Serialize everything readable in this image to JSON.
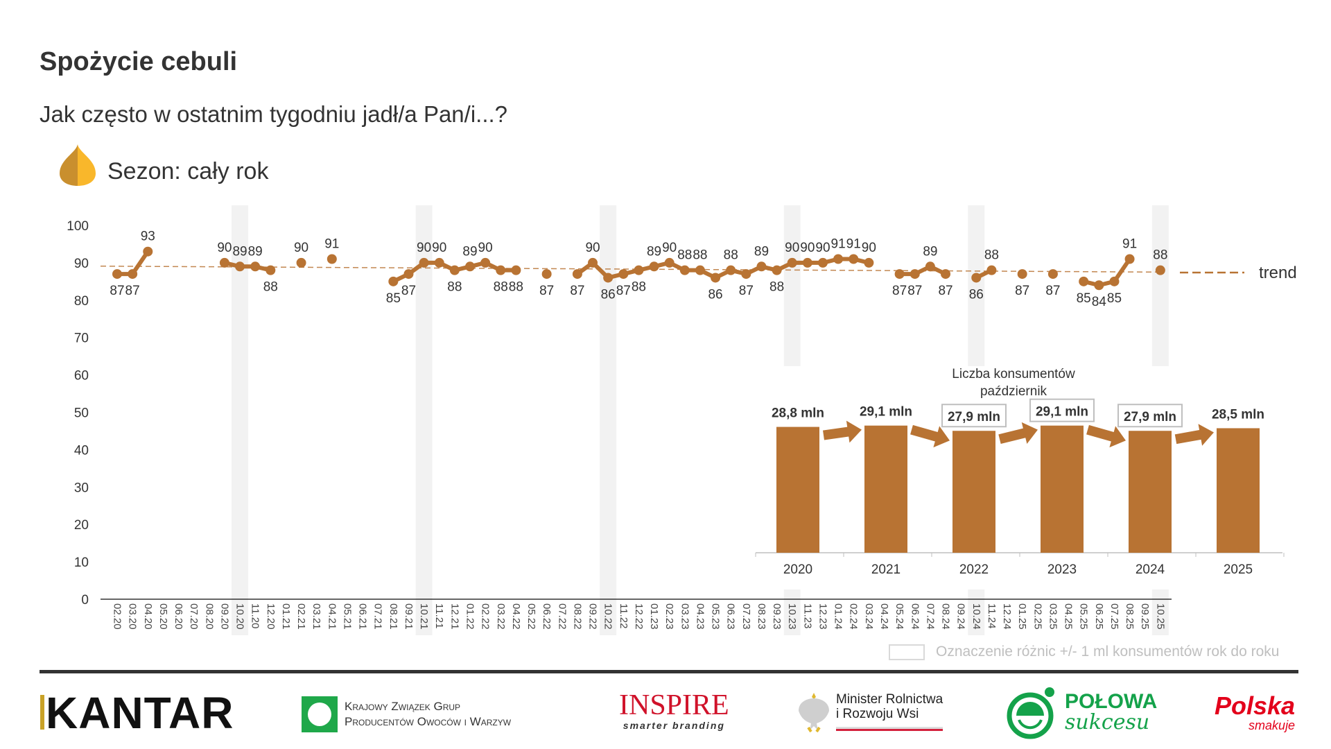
{
  "header": {
    "title": "Spożycie cebuli",
    "subtitle": "Jak często w ostatnim tygodniu jadł/a Pan/i...?",
    "season": "Sezon: cały rok"
  },
  "colors": {
    "series": "#b87333",
    "band": "#f2f2f2",
    "onion_dark": "#c98f2e",
    "onion_light": "#f9b72b"
  },
  "chart_data": [
    {
      "type": "line",
      "title": "Spożycie cebuli",
      "ylim": [
        0,
        100
      ],
      "yticks": [
        0,
        10,
        20,
        30,
        40,
        50,
        60,
        70,
        80,
        90,
        100
      ],
      "x": [
        "02.20",
        "03.20",
        "04.20",
        "05.20",
        "06.20",
        "07.20",
        "08.20",
        "09.20",
        "10.20",
        "11.20",
        "12.20",
        "01.21",
        "02.21",
        "03.21",
        "04.21",
        "05.21",
        "06.21",
        "07.21",
        "08.21",
        "09.21",
        "10.21",
        "11.21",
        "12.21",
        "01.22",
        "02.22",
        "03.22",
        "04.22",
        "05.22",
        "06.22",
        "07.22",
        "08.22",
        "09.22",
        "10.22",
        "11.22",
        "12.22",
        "01.23",
        "02.23",
        "03.23",
        "04.23",
        "05.23",
        "06.23",
        "07.23",
        "08.23",
        "09.23",
        "10.23",
        "11.23",
        "12.23",
        "01.24",
        "02.24",
        "03.24",
        "04.24",
        "05.24",
        "06.24",
        "07.24",
        "08.24",
        "09.24",
        "10.24",
        "11.24",
        "12.24",
        "01.25",
        "02.25",
        "03.25",
        "04.25",
        "05.25",
        "06.25",
        "07.25",
        "08.25",
        "09.25",
        "10.25"
      ],
      "values": [
        87,
        87,
        93,
        null,
        null,
        null,
        null,
        90,
        89,
        89,
        88,
        null,
        90,
        null,
        91,
        null,
        null,
        null,
        85,
        87,
        90,
        90,
        88,
        89,
        90,
        88,
        88,
        null,
        87,
        null,
        87,
        90,
        86,
        87,
        88,
        89,
        90,
        88,
        88,
        86,
        88,
        87,
        89,
        88,
        90,
        90,
        90,
        91,
        91,
        90,
        null,
        87,
        87,
        89,
        87,
        null,
        86,
        88,
        null,
        87,
        null,
        87,
        null,
        85,
        84,
        85,
        91,
        null,
        88
      ],
      "highlighted_months": [
        "10.20",
        "10.21",
        "10.22",
        "10.23",
        "10.24",
        "10.25"
      ],
      "trend": {
        "label": "trend",
        "start": 89.1,
        "end": 87.5
      },
      "grid": false
    },
    {
      "type": "bar",
      "title": "Liczba konsumentów",
      "subtitle": "październik",
      "categories": [
        "2020",
        "2021",
        "2022",
        "2023",
        "2024",
        "2025"
      ],
      "values": [
        28.8,
        29.1,
        27.9,
        29.1,
        27.9,
        28.5
      ],
      "labels": [
        "28,8 mln",
        "29,1 mln",
        "27,9 mln",
        "29,1 mln",
        "27,9 mln",
        "28,5 mln"
      ],
      "boxed": [
        false,
        false,
        true,
        true,
        true,
        false
      ],
      "unit": "mln"
    }
  ],
  "footnote": "Oznaczenie różnic +/- 1 ml konsumentów rok do roku",
  "logos": {
    "kantar": "KANTAR",
    "kzgp_line1": "Krajowy Związek Grup",
    "kzgp_line2": "Producentów Owoców i Warzyw",
    "inspire": "INSPIRE",
    "inspire_tag": "smarter branding",
    "minister_line1": "Minister Rolnictwa",
    "minister_line2": "i Rozwoju Wsi",
    "polowa_line1": "POŁOWA",
    "polowa_line2": "sukcesu",
    "polska": "Polska",
    "polska_tag": "smakuje"
  }
}
